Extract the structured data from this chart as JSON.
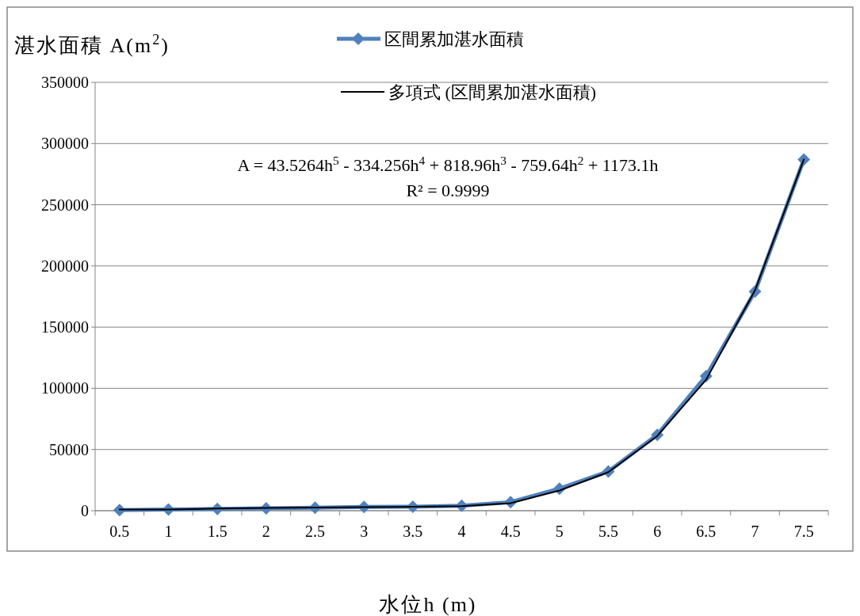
{
  "chart_data": {
    "type": "line",
    "ylabel": "湛水面積 A(m$^{2}$)",
    "xlabel": "水位h (m)",
    "categories": [
      "0.5",
      "1",
      "1.5",
      "2",
      "2.5",
      "3",
      "3.5",
      "4",
      "4.5",
      "5",
      "5.5",
      "6",
      "6.5",
      "7",
      "7.5"
    ],
    "series": [
      {
        "name": "区間累加湛水面積",
        "color": "#4f81bd",
        "marker": "diamond",
        "values": [
          500,
          1000,
          1500,
          2000,
          2500,
          3000,
          3300,
          4000,
          7000,
          18000,
          32000,
          62000,
          110000,
          179000,
          287000
        ]
      },
      {
        "name": "多項式 (区間累加湛水面積)",
        "color": "#000000",
        "marker": "none",
        "values": [
          900,
          1000,
          1700,
          2300,
          2600,
          2900,
          3200,
          3700,
          6200,
          16500,
          31500,
          61000,
          107000,
          180000,
          287000
        ]
      }
    ],
    "ylim": [
      0,
      350000
    ],
    "yticks": [
      0,
      50000,
      100000,
      150000,
      200000,
      250000,
      300000,
      350000
    ],
    "grid": "y",
    "legend": "top",
    "annotations": [
      "A = 43.5264h$^{5}$ - 334.256h$^{4}$ + 818.96h$^{3}$ - 759.64h$^{2}$ + 1173.1h",
      "R² = 0.9999"
    ]
  }
}
